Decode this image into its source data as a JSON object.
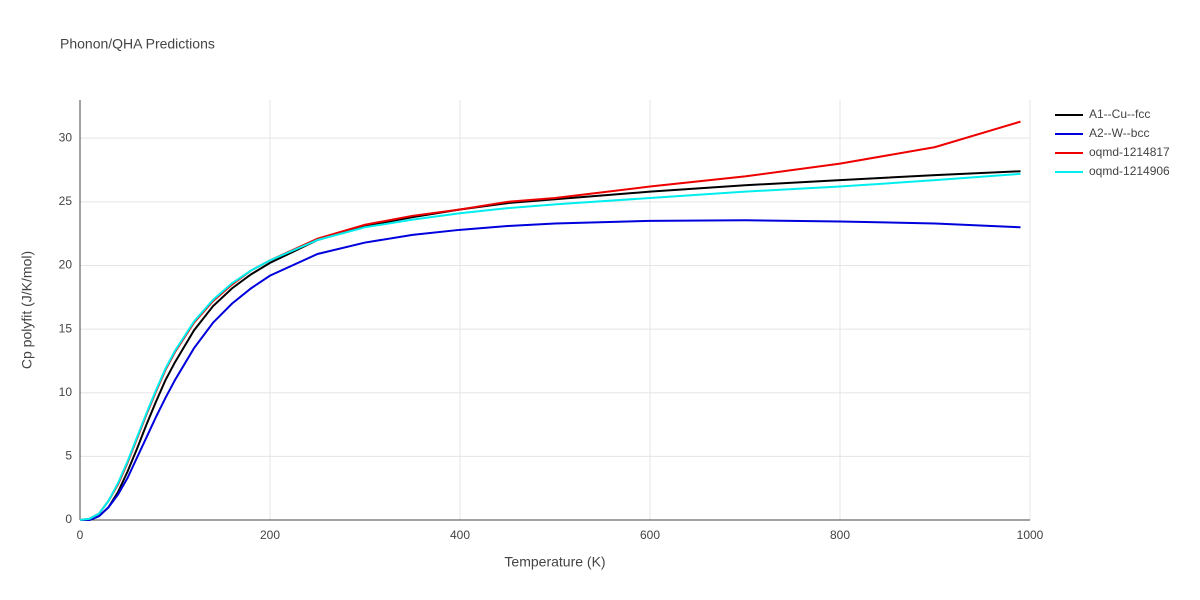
{
  "chart_data": {
    "type": "line",
    "title": "Phonon/QHA Predictions",
    "x_label": "Temperature (K)",
    "y_label": "Cp polyfit (J/K/mol)",
    "x": [
      0,
      10,
      20,
      30,
      40,
      50,
      60,
      70,
      80,
      90,
      100,
      120,
      140,
      160,
      180,
      200,
      250,
      300,
      350,
      400,
      450,
      500,
      600,
      700,
      800,
      900,
      990
    ],
    "series": [
      {
        "name": "A1--Cu--fcc",
        "color": "#000000",
        "values": [
          0,
          0,
          0.3,
          1,
          2.2,
          3.8,
          5.6,
          7.5,
          9.3,
          11,
          12.4,
          14.9,
          16.8,
          18.2,
          19.3,
          20.2,
          22,
          23.1,
          23.8,
          24.4,
          24.9,
          25.2,
          25.8,
          26.3,
          26.7,
          27.1,
          27.4
        ]
      },
      {
        "name": "A2--W--bcc",
        "color": "#0000dd",
        "values": [
          0,
          0,
          0.3,
          1,
          2,
          3.3,
          4.9,
          6.5,
          8.1,
          9.6,
          11,
          13.5,
          15.5,
          17,
          18.2,
          19.2,
          20.9,
          21.8,
          22.4,
          22.8,
          23.1,
          23.3,
          23.5,
          23.55,
          23.45,
          23.3,
          23
        ]
      },
      {
        "name": "oqmd-1214817",
        "color": "#ee0000",
        "values": [
          0,
          0.1,
          0.5,
          1.5,
          2.8,
          4.5,
          6.4,
          8.3,
          10.1,
          11.8,
          13.2,
          15.5,
          17.2,
          18.5,
          19.6,
          20.4,
          22.1,
          23.2,
          23.9,
          24.4,
          25,
          25.3,
          26.2,
          27,
          28,
          29.3,
          31.3
        ]
      },
      {
        "name": "oqmd-1214906",
        "color": "#00eeee",
        "values": [
          0,
          0.1,
          0.5,
          1.5,
          2.9,
          4.6,
          6.5,
          8.4,
          10.2,
          11.9,
          13.3,
          15.6,
          17.3,
          18.6,
          19.6,
          20.4,
          22,
          23,
          23.6,
          24.1,
          24.5,
          24.8,
          25.3,
          25.8,
          26.2,
          26.7,
          27.2
        ]
      }
    ],
    "xlim": [
      0,
      1000
    ],
    "xticks": [
      0,
      200,
      400,
      600,
      800,
      1000
    ],
    "ylim": [
      0,
      33
    ],
    "yticks": [
      0,
      5,
      10,
      15,
      20,
      25,
      30
    ],
    "grid": true,
    "legend": "top-right"
  }
}
